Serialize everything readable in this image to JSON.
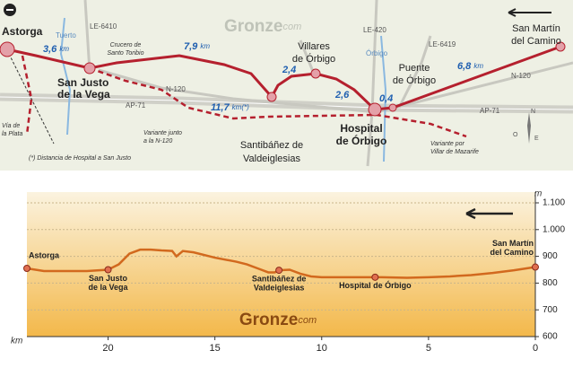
{
  "map": {
    "logo": {
      "name": "Gronze",
      "suffix": "com"
    },
    "towns": {
      "astorga": "Astorga",
      "san_justo": [
        "San Justo",
        "de la Vega"
      ],
      "villares": [
        "Villares",
        "de Órbigo"
      ],
      "santibanez": [
        "Santibáñez de",
        "Valdeiglesias"
      ],
      "hospital": [
        "Hospital",
        "de Órbigo"
      ],
      "puente": [
        "Puente",
        "de Órbigo"
      ],
      "san_martin": [
        "San Martín",
        "del Camino"
      ]
    },
    "places": {
      "crucero": [
        "Crucero de",
        "Santo Toribio"
      ]
    },
    "roads": [
      "LE-6410",
      "LE-420",
      "LE-6419",
      "N-120",
      "AP-71"
    ],
    "rivers": [
      "Tuerto",
      "Órbigo"
    ],
    "notes": {
      "via_plata": [
        "Vía de",
        "la Plata"
      ],
      "variante_n120": [
        "Variante junto",
        "a la N-120"
      ],
      "variante_mazarife": [
        "Variante por",
        "Villar de Mazarife"
      ],
      "footnote": "(*) Distancia de Hospital a San Justo"
    },
    "distances": [
      "3,6",
      "7,9",
      "2,4",
      "2,6",
      "0,4",
      "6,8",
      "11,7"
    ],
    "distance_unit": "km",
    "distance_unit_note": "km(*)",
    "compass": [
      "N",
      "O",
      "E",
      "S"
    ]
  },
  "chart_data": {
    "type": "line",
    "x_label": "km",
    "y_label": "m",
    "x": [
      23.8,
      23,
      22,
      21,
      20,
      19.5,
      19,
      18.5,
      18,
      17.5,
      17,
      16.8,
      16.5,
      16,
      15,
      14,
      13.5,
      13,
      12.5,
      12.2,
      12,
      11.5,
      11,
      10.5,
      10,
      9,
      8,
      7.2,
      6,
      5,
      4,
      3,
      2,
      1,
      0
    ],
    "values": [
      855,
      845,
      845,
      845,
      850,
      870,
      910,
      925,
      925,
      922,
      920,
      900,
      920,
      915,
      895,
      880,
      870,
      855,
      840,
      840,
      848,
      850,
      835,
      825,
      822,
      822,
      822,
      822,
      820,
      822,
      825,
      830,
      838,
      848,
      860
    ],
    "color": "#d2691e",
    "markers": [
      {
        "label": [
          "Astorga"
        ],
        "x": 23.8,
        "value": 855
      },
      {
        "label": [
          "San Justo",
          "de la Vega"
        ],
        "x": 20,
        "value": 850
      },
      {
        "label": [
          "Santibáñez de",
          "Valdeiglesias"
        ],
        "x": 12,
        "value": 848
      },
      {
        "label": [
          "Hospital de Órbigo"
        ],
        "x": 7.5,
        "value": 822
      },
      {
        "label": [
          "San Martín",
          "del Camino"
        ],
        "x": 0,
        "value": 860
      }
    ],
    "xlim": [
      23.8,
      0
    ],
    "ylim": [
      600,
      1100
    ],
    "xticks": [
      20,
      15,
      10,
      5,
      0
    ],
    "yticks": [
      {
        "value": 1100,
        "label": "1.100"
      },
      {
        "value": 1000,
        "label": "1.000"
      },
      900,
      800,
      700,
      600
    ],
    "grid": true,
    "logo": {
      "name": "Gronze",
      "suffix": "com"
    }
  }
}
